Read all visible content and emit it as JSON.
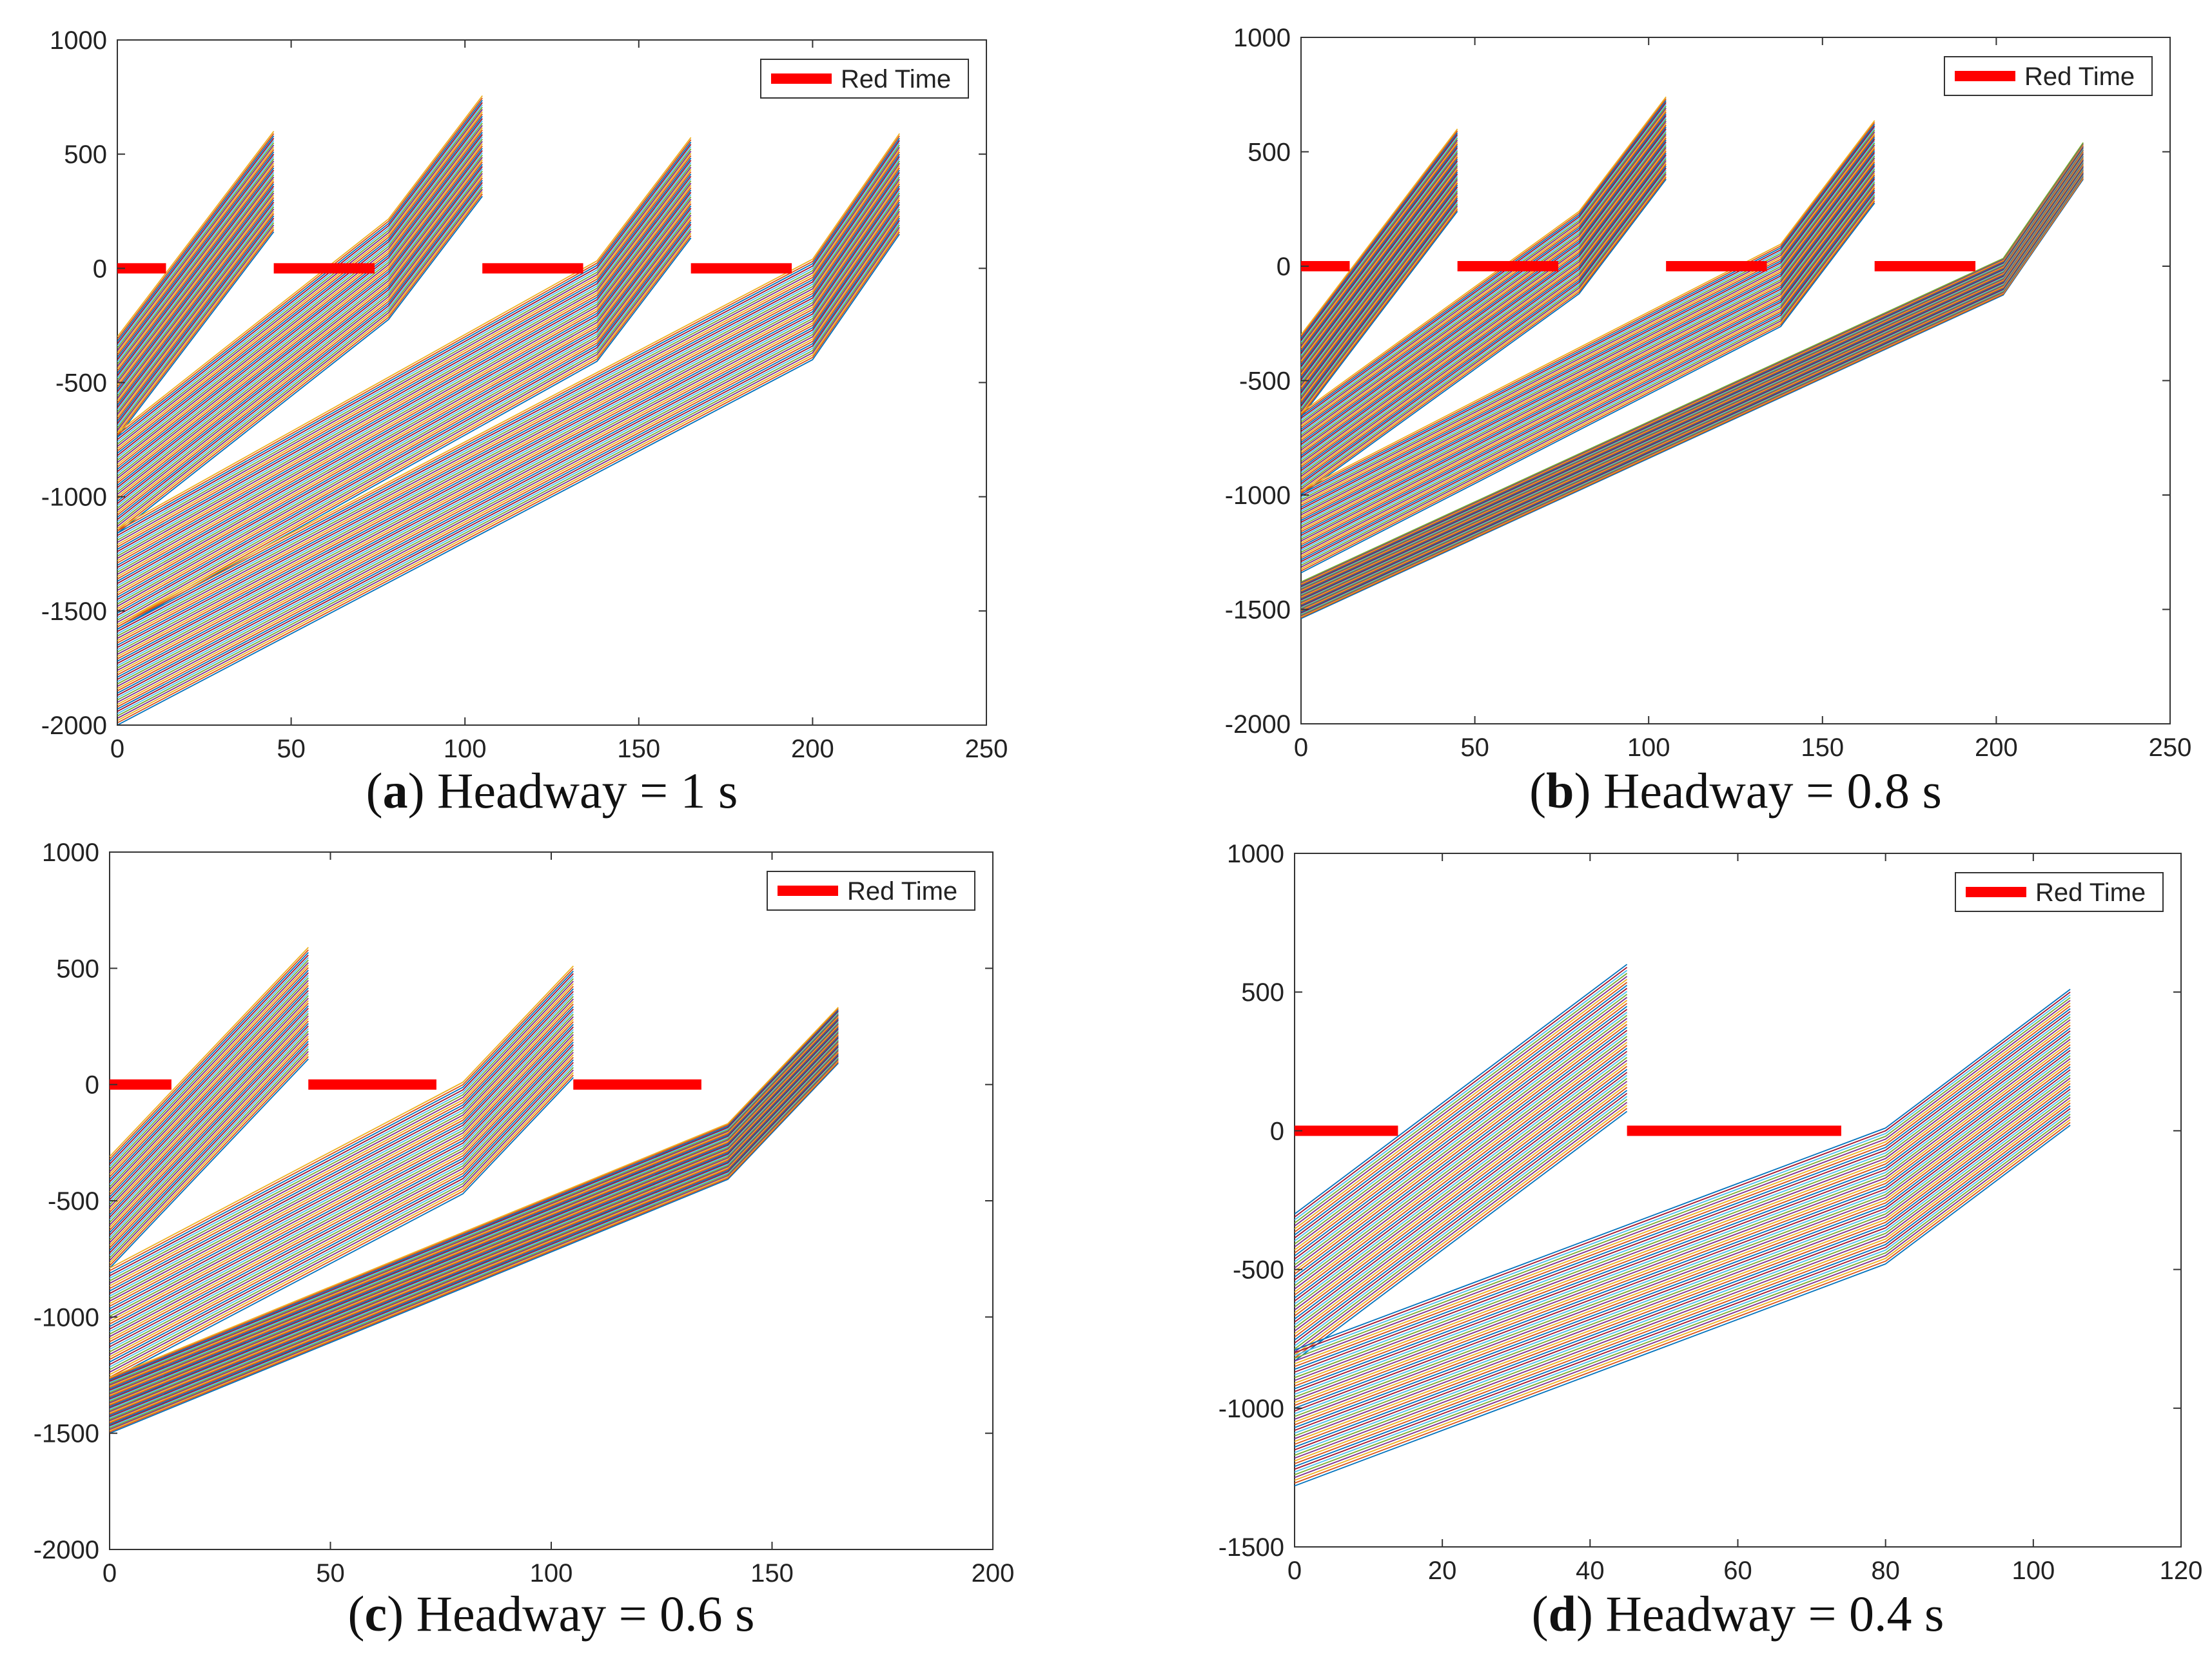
{
  "figure": {
    "colors": {
      "red_time": "#ff0000",
      "vehicle_palette": [
        "#0072BD",
        "#D95319",
        "#EDB120",
        "#7E2F8E",
        "#77AC30",
        "#4DBEEE",
        "#A2142F"
      ],
      "axis": "#333333",
      "stop_band": "#444444"
    }
  },
  "chart_data": [
    {
      "type": "line",
      "panel": "a",
      "caption": {
        "letter": "a",
        "open": "(",
        "close": ")",
        "text": "Headway = 1 s"
      },
      "legend": {
        "label": "Red Time",
        "location": "top-right"
      },
      "xlim": [
        0,
        250
      ],
      "ylim": [
        -2000,
        1000
      ],
      "xticks": [
        0,
        50,
        100,
        150,
        200,
        250
      ],
      "yticks": [
        1000,
        500,
        0,
        -500,
        -1000,
        -1500,
        -2000
      ],
      "red_intervals": [
        [
          0,
          14
        ],
        [
          45,
          74
        ],
        [
          105,
          134
        ],
        [
          165,
          194
        ]
      ],
      "platoons": [
        {
          "vehicles": 45,
          "tail_start_y": -740,
          "head_start_y": -300,
          "slope": 20,
          "t_end": 45
        },
        {
          "vehicles": 45,
          "tail_start_y": -1160,
          "head_start_y": -720,
          "slope": 12,
          "t_release": 78,
          "slope_after": 20,
          "t_end": 105
        },
        {
          "vehicles": 45,
          "tail_start_y": -1580,
          "head_start_y": -1140,
          "slope": 8.5,
          "t_release": 138,
          "slope_after": 20,
          "t_end": 165
        },
        {
          "vehicles": 45,
          "tail_start_y": -2000,
          "head_start_y": -1560,
          "slope": 8,
          "t_release": 200,
          "slope_after": 22,
          "t_end": 225
        }
      ]
    },
    {
      "type": "line",
      "panel": "b",
      "caption": {
        "letter": "b",
        "open": "(",
        "close": ")",
        "text": "Headway = 0.8 s"
      },
      "legend": {
        "label": "Red Time",
        "location": "top-right"
      },
      "xlim": [
        0,
        250
      ],
      "ylim": [
        -2000,
        1000
      ],
      "xticks": [
        0,
        50,
        100,
        150,
        200,
        250
      ],
      "yticks": [
        1000,
        500,
        0,
        -500,
        -1000,
        -1500,
        -2000
      ],
      "red_intervals": [
        [
          0,
          14
        ],
        [
          45,
          74
        ],
        [
          105,
          134
        ],
        [
          165,
          194
        ]
      ],
      "platoons": [
        {
          "vehicles": 45,
          "tail_start_y": -660,
          "head_start_y": -300,
          "slope": 20,
          "t_end": 45
        },
        {
          "vehicles": 45,
          "tail_start_y": -1000,
          "head_start_y": -640,
          "slope": 11,
          "t_release": 80,
          "slope_after": 20,
          "t_end": 105
        },
        {
          "vehicles": 45,
          "tail_start_y": -1340,
          "head_start_y": -980,
          "slope": 7.8,
          "t_release": 138,
          "slope_after": 20,
          "t_end": 165
        },
        {
          "vehicles": 40,
          "tail_start_y": -1540,
          "head_start_y": -1380,
          "slope": 7,
          "t_release": 202,
          "slope_after": 22,
          "t_end": 225
        }
      ]
    },
    {
      "type": "line",
      "panel": "c",
      "caption": {
        "letter": "c",
        "open": "(",
        "close": ")",
        "text": "Headway = 0.6 s"
      },
      "legend": {
        "label": "Red Time",
        "location": "top-right"
      },
      "xlim": [
        0,
        200
      ],
      "ylim": [
        -2000,
        1000
      ],
      "xticks": [
        0,
        50,
        100,
        150,
        200
      ],
      "yticks": [
        1000,
        500,
        0,
        -500,
        -1000,
        -1500,
        -2000
      ],
      "red_intervals": [
        [
          0,
          14
        ],
        [
          45,
          74
        ],
        [
          105,
          134
        ]
      ],
      "platoons": [
        {
          "vehicles": 45,
          "tail_start_y": -790,
          "head_start_y": -310,
          "slope": 20,
          "t_end": 45
        },
        {
          "vehicles": 45,
          "tail_start_y": -1270,
          "head_start_y": -790,
          "slope": 10,
          "t_release": 80,
          "slope_after": 20,
          "t_end": 105
        },
        {
          "vehicles": 45,
          "tail_start_y": -1500,
          "head_start_y": -1260,
          "slope": 7.8,
          "t_release": 140,
          "slope_after": 20,
          "t_end": 165
        }
      ]
    },
    {
      "type": "line",
      "panel": "d",
      "caption": {
        "letter": "d",
        "open": "(",
        "close": ")",
        "text": "Headway = 0.4 s"
      },
      "legend": {
        "label": "Red Time",
        "location": "top-right"
      },
      "xlim": [
        0,
        120
      ],
      "ylim": [
        -1500,
        1000
      ],
      "xticks": [
        0,
        20,
        40,
        60,
        80,
        100,
        120
      ],
      "yticks": [
        1000,
        500,
        0,
        -500,
        -1000,
        -1500
      ],
      "red_intervals": [
        [
          0,
          14
        ],
        [
          45,
          74
        ]
      ],
      "platoons": [
        {
          "vehicles": 50,
          "tail_start_y": -830,
          "head_start_y": -300,
          "slope": 20,
          "t_end": 45
        },
        {
          "vehicles": 50,
          "tail_start_y": -1280,
          "head_start_y": -790,
          "slope": 10,
          "t_release": 80,
          "slope_after": 20,
          "t_end": 105
        }
      ]
    }
  ]
}
